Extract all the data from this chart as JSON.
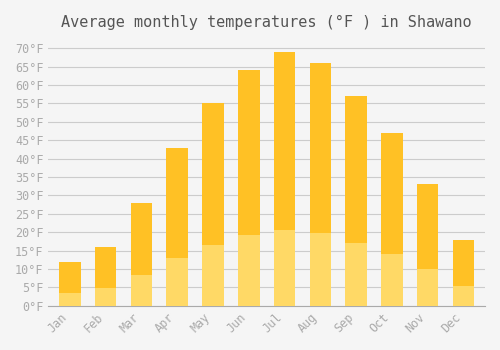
{
  "title": "Average monthly temperatures (°F ) in Shawano",
  "months": [
    "Jan",
    "Feb",
    "Mar",
    "Apr",
    "May",
    "Jun",
    "Jul",
    "Aug",
    "Sep",
    "Oct",
    "Nov",
    "Dec"
  ],
  "values": [
    12,
    16,
    28,
    43,
    55,
    64,
    69,
    66,
    57,
    47,
    33,
    18
  ],
  "bar_color_top": "#FFC125",
  "bar_color_bottom": "#FFD966",
  "ylim": [
    0,
    72
  ],
  "yticks": [
    0,
    5,
    10,
    15,
    20,
    25,
    30,
    35,
    40,
    45,
    50,
    55,
    60,
    65,
    70
  ],
  "ylabel_suffix": "°F",
  "background_color": "#F5F5F5",
  "grid_color": "#CCCCCC",
  "title_fontsize": 11,
  "tick_fontsize": 8.5,
  "tick_color": "#AAAAAA",
  "font_family": "monospace"
}
